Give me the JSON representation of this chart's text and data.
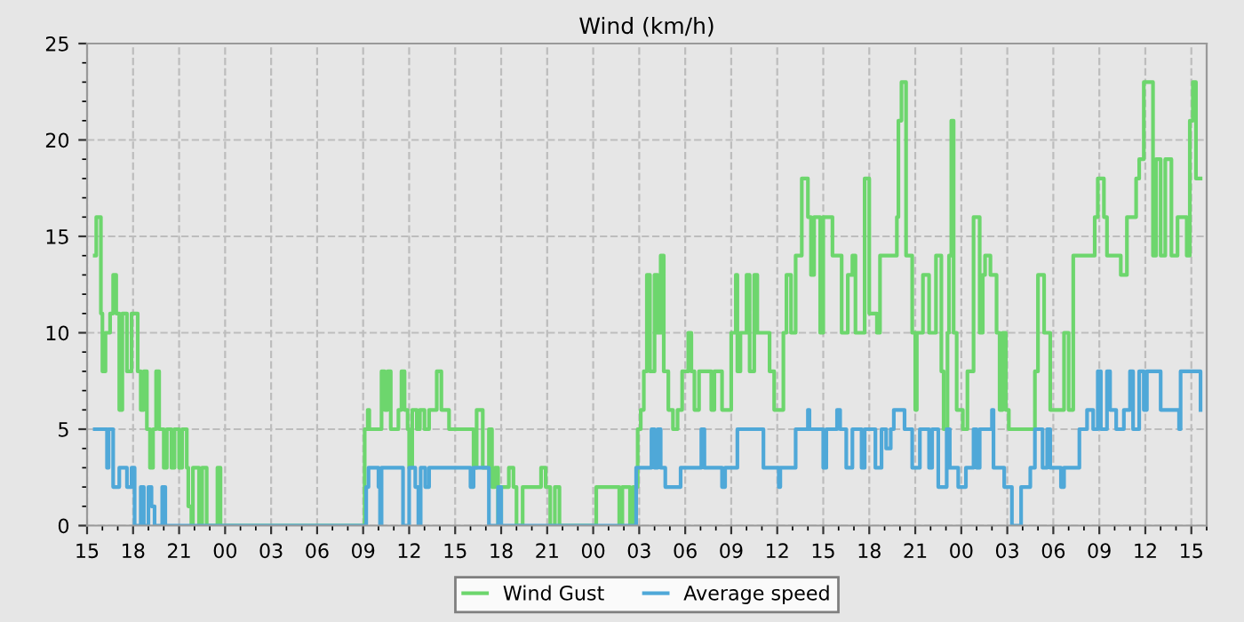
{
  "chart_data": {
    "type": "step",
    "title": "Wind (km/h)",
    "xlim": [
      15,
      88
    ],
    "ylim": [
      0,
      25
    ],
    "yticks": [
      0,
      5,
      10,
      15,
      20,
      25
    ],
    "xticks": [
      {
        "value": 15,
        "label": "15"
      },
      {
        "value": 18,
        "label": "18"
      },
      {
        "value": 21,
        "label": "21"
      },
      {
        "value": 24,
        "label": "00"
      },
      {
        "value": 27,
        "label": "03"
      },
      {
        "value": 30,
        "label": "06"
      },
      {
        "value": 33,
        "label": "09"
      },
      {
        "value": 36,
        "label": "12"
      },
      {
        "value": 39,
        "label": "15"
      },
      {
        "value": 42,
        "label": "18"
      },
      {
        "value": 45,
        "label": "21"
      },
      {
        "value": 48,
        "label": "00"
      },
      {
        "value": 51,
        "label": "03"
      },
      {
        "value": 54,
        "label": "06"
      },
      {
        "value": 57,
        "label": "09"
      },
      {
        "value": 60,
        "label": "12"
      },
      {
        "value": 63,
        "label": "15"
      },
      {
        "value": 66,
        "label": "18"
      },
      {
        "value": 69,
        "label": "21"
      },
      {
        "value": 72,
        "label": "00"
      },
      {
        "value": 75,
        "label": "03"
      },
      {
        "value": 78,
        "label": "06"
      },
      {
        "value": 81,
        "label": "09"
      },
      {
        "value": 84,
        "label": "12"
      },
      {
        "value": 87,
        "label": "15"
      }
    ],
    "grid": true,
    "legend": "bottom",
    "line_style": "solid",
    "marker": "none",
    "series": [
      {
        "name": "Wind Gust",
        "color": "#6dd66d",
        "x": [
          15.5,
          15.6,
          15.9,
          16.0,
          16.2,
          16.5,
          16.7,
          16.9,
          17.1,
          17.3,
          17.6,
          17.9,
          18.3,
          18.5,
          18.7,
          18.9,
          19.1,
          19.3,
          19.5,
          19.7,
          20.0,
          20.2,
          20.5,
          20.7,
          21.0,
          21.2,
          21.5,
          21.6,
          21.8,
          21.9,
          22.3,
          22.5,
          22.8,
          23.5,
          23.7,
          33.1,
          33.3,
          33.4,
          34.2,
          34.4,
          34.6,
          34.8,
          35.3,
          35.5,
          35.7,
          35.9,
          36.0,
          36.2,
          36.5,
          36.7,
          37.0,
          37.3,
          37.8,
          38.1,
          38.6,
          40.2,
          40.4,
          40.8,
          41.2,
          41.4,
          41.6,
          41.8,
          42.0,
          42.5,
          42.8,
          43.0,
          43.4,
          44.6,
          44.9,
          45.2,
          45.5,
          45.8,
          48.2,
          49.7,
          49.9,
          50.4,
          50.6,
          50.9,
          51.1,
          51.3,
          51.5,
          51.7,
          52.0,
          52.2,
          52.4,
          52.6,
          52.9,
          53.2,
          53.5,
          53.8,
          54.2,
          54.4,
          54.6,
          54.9,
          55.7,
          55.9,
          56.4,
          57.0,
          57.3,
          57.4,
          57.6,
          58.0,
          58.2,
          58.5,
          58.7,
          59.5,
          59.8,
          60.4,
          60.6,
          60.9,
          61.2,
          61.6,
          62.0,
          62.2,
          62.4,
          62.8,
          63.0,
          63.6,
          64.2,
          64.6,
          64.9,
          65.1,
          65.7,
          66.0,
          66.5,
          66.7,
          67.8,
          67.9,
          68.1,
          68.4,
          68.8,
          69.0,
          69.1,
          69.5,
          69.9,
          70.35,
          70.7,
          70.85,
          71.1,
          71.2,
          71.35,
          71.5,
          71.7,
          72.1,
          72.4,
          72.8,
          73.2,
          73.4,
          73.55,
          73.9,
          74.3,
          74.5,
          74.7,
          74.9,
          75.1,
          76.8,
          77.0,
          77.4,
          77.8,
          78.7,
          79.0,
          79.3,
          80.7,
          80.9,
          81.3,
          81.5,
          82.4,
          82.8,
          83.4,
          83.6,
          83.9,
          84.5,
          84.7,
          85.0,
          85.3,
          85.7,
          86.1,
          86.7,
          86.9,
          87.1,
          87.3,
          87.6
        ],
        "values": [
          14,
          16,
          11,
          8,
          10,
          11,
          13,
          11,
          6,
          11,
          8,
          11,
          8,
          6,
          8,
          5,
          3,
          5,
          8,
          5,
          3,
          5,
          3,
          5,
          3,
          5,
          3,
          1,
          0,
          3,
          0,
          3,
          0,
          3,
          0,
          5,
          6,
          5,
          8,
          6,
          8,
          5,
          6,
          8,
          6,
          5,
          3,
          6,
          5,
          6,
          5,
          6,
          8,
          6,
          5,
          3,
          6,
          3,
          5,
          2,
          3,
          0,
          2,
          3,
          2,
          0,
          2,
          3,
          2,
          0,
          2,
          0,
          2,
          0,
          2,
          0,
          2,
          5,
          6,
          8,
          13,
          8,
          13,
          10,
          14,
          8,
          6,
          5,
          6,
          8,
          10,
          8,
          6,
          8,
          6,
          8,
          6,
          10,
          13,
          8,
          10,
          13,
          8,
          13,
          10,
          8,
          6,
          10,
          13,
          10,
          14,
          18,
          16,
          13,
          16,
          10,
          16,
          14,
          10,
          13,
          14,
          10,
          18,
          11,
          10,
          14,
          16,
          21,
          23,
          14,
          10,
          6,
          10,
          13,
          10,
          14,
          8,
          5,
          10,
          14,
          21,
          10,
          6,
          5,
          8,
          16,
          10,
          13,
          14,
          13,
          10,
          6,
          10,
          6,
          5,
          8,
          13,
          10,
          6,
          10,
          6,
          14,
          16,
          18,
          16,
          14,
          13,
          16,
          18,
          19,
          23,
          14,
          19,
          14,
          19,
          14,
          16,
          14,
          21,
          23,
          18,
          18
        ]
      },
      {
        "name": "Average speed",
        "color": "#4fa8d8",
        "x": [
          15.5,
          16.3,
          16.4,
          16.7,
          17.1,
          17.6,
          17.9,
          18.1,
          18.5,
          18.7,
          19.0,
          19.2,
          19.4,
          19.9,
          20.1,
          33.2,
          33.35,
          34.0,
          34.1,
          34.2,
          35.6,
          36.0,
          36.4,
          36.6,
          36.75,
          37.05,
          37.3,
          40.0,
          40.2,
          41.2,
          41.8,
          42.0,
          50.8,
          51.0,
          51.8,
          52.0,
          52.2,
          52.4,
          52.7,
          53.7,
          55.05,
          55.25,
          56.4,
          56.6,
          57.4,
          59.1,
          60.1,
          60.2,
          61.2,
          62.0,
          62.1,
          63.0,
          63.2,
          63.9,
          64.1,
          64.5,
          64.9,
          65.5,
          65.7,
          66.4,
          66.8,
          67.1,
          67.4,
          67.6,
          68.3,
          68.8,
          69.3,
          69.9,
          70.1,
          70.5,
          71.05,
          71.25,
          71.8,
          72.1,
          72.3,
          72.8,
          73.0,
          73.2,
          74.0,
          74.1,
          74.8,
          75.3,
          75.9,
          76.5,
          76.8,
          77.3,
          77.6,
          77.8,
          78.5,
          78.7,
          79.7,
          80.2,
          80.6,
          80.9,
          81.1,
          81.5,
          81.7,
          82.1,
          82.6,
          83.0,
          83.2,
          83.6,
          83.9,
          84.1,
          85.0,
          86.2,
          86.3,
          87.6
        ],
        "values": [
          5,
          3,
          5,
          2,
          3,
          2,
          3,
          0,
          2,
          0,
          2,
          1,
          0,
          2,
          0,
          2,
          3,
          2,
          0,
          3,
          0,
          3,
          2,
          0,
          3,
          2,
          3,
          2,
          3,
          0,
          2,
          0,
          3,
          3,
          5,
          3,
          5,
          3,
          2,
          3,
          5,
          3,
          2,
          3,
          5,
          3,
          2,
          3,
          5,
          6,
          5,
          3,
          5,
          6,
          5,
          3,
          5,
          3,
          5,
          3,
          5,
          4,
          5,
          6,
          5,
          3,
          5,
          3,
          5,
          2,
          5,
          3,
          2,
          2,
          3,
          5,
          3,
          5,
          6,
          3,
          2,
          0,
          2,
          3,
          5,
          3,
          5,
          3,
          2,
          3,
          5,
          6,
          5,
          8,
          5,
          8,
          6,
          5,
          6,
          8,
          5,
          8,
          6,
          8,
          6,
          5,
          8,
          6
        ]
      }
    ]
  }
}
